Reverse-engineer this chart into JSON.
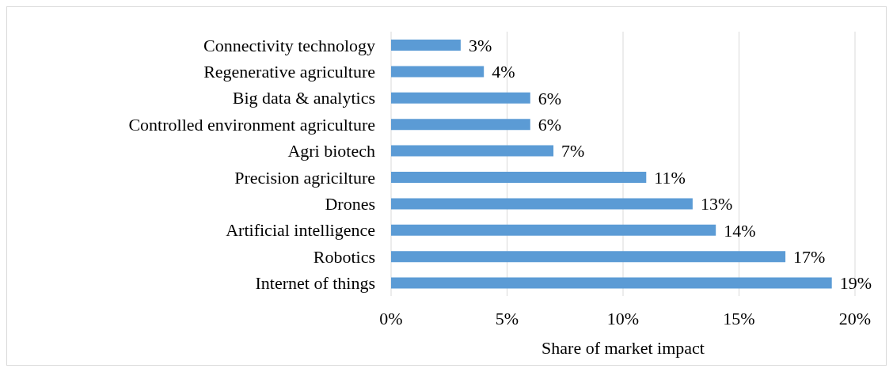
{
  "chart_data": {
    "type": "bar",
    "orientation": "horizontal",
    "xlabel": "Share of market impact",
    "categories": [
      "Connectivity technology",
      "Regenerative agriculture",
      "Big data & analytics",
      "Controlled environment agriculture",
      "Agri biotech",
      "Precision agricilture",
      "Drones",
      "Artificial intelligence",
      "Robotics",
      "Internet of things"
    ],
    "values": [
      3,
      4,
      6,
      6,
      7,
      11,
      13,
      14,
      17,
      19
    ],
    "value_labels": [
      "3%",
      "4%",
      "6%",
      "6%",
      "7%",
      "11%",
      "13%",
      "14%",
      "17%",
      "19%"
    ],
    "color": "#5b9bd5",
    "xlim": [
      0,
      20
    ],
    "xticks": [
      {
        "value": 0,
        "label": "0%"
      },
      {
        "value": 5,
        "label": "5%"
      },
      {
        "value": 10,
        "label": "10%"
      },
      {
        "value": 15,
        "label": "15%"
      },
      {
        "value": 20,
        "label": "20%"
      }
    ],
    "grid": "x"
  }
}
